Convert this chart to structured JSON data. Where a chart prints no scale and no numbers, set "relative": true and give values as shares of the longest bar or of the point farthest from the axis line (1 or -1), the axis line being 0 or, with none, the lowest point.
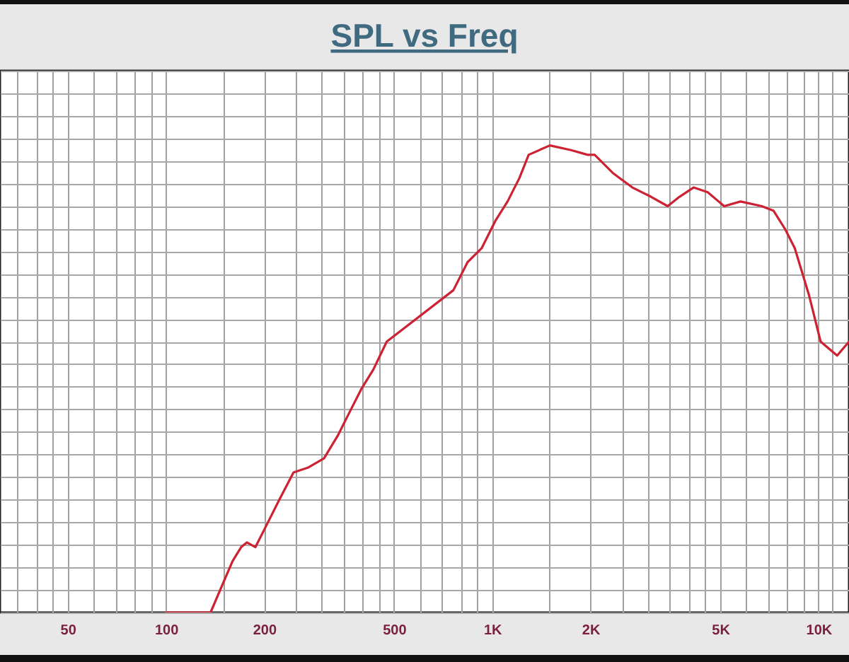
{
  "chart_data": {
    "type": "line",
    "title": "SPL vs Freq",
    "relative": true,
    "log": "x",
    "grid": true,
    "xlim": [
      31,
      12400
    ],
    "xticks": [
      {
        "value": 35,
        "label": null
      },
      {
        "value": 40,
        "label": null
      },
      {
        "value": 45,
        "label": null
      },
      50,
      {
        "value": 60,
        "label": null
      },
      {
        "value": 70,
        "label": null
      },
      {
        "value": 80,
        "label": null
      },
      {
        "value": 90,
        "label": null
      },
      100,
      {
        "value": 150,
        "label": null
      },
      200,
      {
        "value": 250,
        "label": null
      },
      {
        "value": 300,
        "label": null
      },
      {
        "value": 350,
        "label": null
      },
      {
        "value": 400,
        "label": null
      },
      {
        "value": 450,
        "label": null
      },
      500,
      {
        "value": 600,
        "label": null
      },
      {
        "value": 700,
        "label": null
      },
      {
        "value": 800,
        "label": null
      },
      {
        "value": 900,
        "label": null
      },
      {
        "value": 1000,
        "label": "1K"
      },
      {
        "value": 1500,
        "label": null
      },
      {
        "value": 2000,
        "label": "2K"
      },
      {
        "value": 2500,
        "label": null
      },
      {
        "value": 3000,
        "label": null
      },
      {
        "value": 3500,
        "label": null
      },
      {
        "value": 4000,
        "label": null
      },
      {
        "value": 4500,
        "label": null
      },
      {
        "value": 5000,
        "label": "5K"
      },
      {
        "value": 6000,
        "label": null
      },
      {
        "value": 7000,
        "label": null
      },
      {
        "value": 8000,
        "label": null
      },
      {
        "value": 9000,
        "label": null
      },
      {
        "value": 10000,
        "label": "10K"
      },
      {
        "value": 11000,
        "label": null
      }
    ],
    "x": [
      100,
      137,
      147,
      160,
      170,
      177,
      188,
      201,
      222,
      246,
      272,
      305,
      337,
      360,
      398,
      432,
      475,
      760,
      840,
      928,
      1025,
      1114,
      1211,
      1293,
      1502,
      1744,
      1960,
      2060,
      2352,
      2688,
      3069,
      3449,
      3747,
      4140,
      4574,
      5139,
      5768,
      6699,
      7284,
      7912,
      8458,
      8892,
      9346,
      10150,
      11403,
      12400
    ],
    "series": [
      {
        "color": "#cc2233",
        "values": [
          0,
          0,
          0.05,
          0.11,
          0.14,
          0.15,
          0.14,
          0.18,
          0.24,
          0.3,
          0.31,
          0.33,
          0.38,
          0.42,
          0.48,
          0.52,
          0.58,
          0.69,
          0.75,
          0.78,
          0.84,
          0.88,
          0.93,
          0.98,
          1,
          0.99,
          0.98,
          0.98,
          0.94,
          0.91,
          0.89,
          0.87,
          0.89,
          0.91,
          0.9,
          0.87,
          0.88,
          0.87,
          0.86,
          0.82,
          0.78,
          0.73,
          0.68,
          0.58,
          0.55,
          0.58
        ]
      }
    ]
  }
}
